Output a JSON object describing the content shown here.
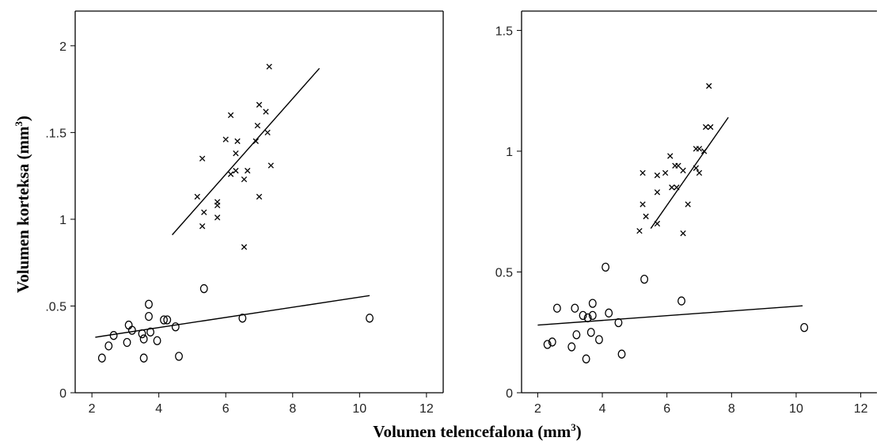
{
  "figure": {
    "ylabel": "Volumen korteksa (mm",
    "ylabel_sup": "3",
    "ylabel_end": ")",
    "xlabel": "Volumen telencefalona (mm",
    "xlabel_sup": "3",
    "xlabel_end": ")"
  },
  "chart_data": [
    {
      "type": "scatter",
      "title": "",
      "xlabel": "",
      "ylabel": "",
      "xlim": [
        1.5,
        12.5
      ],
      "ylim": [
        0,
        2.2
      ],
      "xticks": [
        2,
        4,
        6,
        8,
        10,
        12
      ],
      "yticks": [
        0,
        0.5,
        1,
        1.5,
        2
      ],
      "ytick_labels": [
        "0",
        ".0.5",
        "1",
        ".1.5",
        "2"
      ],
      "grid": false,
      "series": [
        {
          "marker": "x",
          "points": [
            [
              7.3,
              1.88
            ],
            [
              7.0,
              1.66
            ],
            [
              6.15,
              1.6
            ],
            [
              7.2,
              1.62
            ],
            [
              6.95,
              1.54
            ],
            [
              6.0,
              1.46
            ],
            [
              6.35,
              1.45
            ],
            [
              6.9,
              1.45
            ],
            [
              7.25,
              1.5
            ],
            [
              6.3,
              1.38
            ],
            [
              5.3,
              1.35
            ],
            [
              7.35,
              1.31
            ],
            [
              6.3,
              1.28
            ],
            [
              6.65,
              1.28
            ],
            [
              6.15,
              1.26
            ],
            [
              6.55,
              1.23
            ],
            [
              5.15,
              1.13
            ],
            [
              7.0,
              1.13
            ],
            [
              5.75,
              1.1
            ],
            [
              5.75,
              1.08
            ],
            [
              5.35,
              1.04
            ],
            [
              5.75,
              1.01
            ],
            [
              5.3,
              0.96
            ],
            [
              6.55,
              0.84
            ]
          ],
          "fit": {
            "x": [
              4.4,
              8.8
            ],
            "y": [
              0.91,
              1.87
            ]
          }
        },
        {
          "marker": "o",
          "points": [
            [
              3.7,
              0.51
            ],
            [
              5.35,
              0.6
            ],
            [
              3.1,
              0.39
            ],
            [
              3.7,
              0.44
            ],
            [
              4.15,
              0.42
            ],
            [
              4.25,
              0.42
            ],
            [
              3.2,
              0.36
            ],
            [
              3.75,
              0.35
            ],
            [
              3.5,
              0.34
            ],
            [
              4.5,
              0.38
            ],
            [
              2.65,
              0.33
            ],
            [
              3.55,
              0.31
            ],
            [
              3.05,
              0.29
            ],
            [
              3.95,
              0.3
            ],
            [
              2.5,
              0.27
            ],
            [
              2.3,
              0.2
            ],
            [
              3.55,
              0.2
            ],
            [
              4.6,
              0.21
            ],
            [
              6.5,
              0.43
            ],
            [
              10.3,
              0.43
            ]
          ],
          "fit": {
            "x": [
              2.1,
              10.3
            ],
            "y": [
              0.32,
              0.56
            ]
          }
        }
      ]
    },
    {
      "type": "scatter",
      "title": "",
      "xlabel": "",
      "ylabel": "",
      "xlim": [
        1.5,
        12.5
      ],
      "ylim": [
        0,
        1.58
      ],
      "xticks": [
        2,
        4,
        6,
        8,
        10,
        12
      ],
      "yticks": [
        0,
        0.5,
        1,
        1.5
      ],
      "ytick_labels": [
        "0",
        "0.5",
        "1",
        "1.5"
      ],
      "grid": false,
      "series": [
        {
          "marker": "x",
          "points": [
            [
              7.3,
              1.27
            ],
            [
              7.2,
              1.1
            ],
            [
              7.35,
              1.1
            ],
            [
              6.1,
              0.98
            ],
            [
              6.9,
              1.01
            ],
            [
              7.0,
              1.01
            ],
            [
              7.15,
              1.0
            ],
            [
              6.9,
              0.93
            ],
            [
              7.0,
              0.91
            ],
            [
              6.25,
              0.94
            ],
            [
              6.35,
              0.94
            ],
            [
              6.5,
              0.92
            ],
            [
              5.25,
              0.91
            ],
            [
              5.7,
              0.9
            ],
            [
              5.95,
              0.91
            ],
            [
              6.15,
              0.85
            ],
            [
              6.3,
              0.85
            ],
            [
              5.7,
              0.83
            ],
            [
              5.25,
              0.78
            ],
            [
              6.65,
              0.78
            ],
            [
              5.35,
              0.73
            ],
            [
              5.7,
              0.7
            ],
            [
              5.15,
              0.67
            ],
            [
              6.5,
              0.66
            ]
          ],
          "fit": {
            "x": [
              5.5,
              7.9
            ],
            "y": [
              0.68,
              1.14
            ]
          }
        },
        {
          "marker": "o",
          "points": [
            [
              4.1,
              0.52
            ],
            [
              5.3,
              0.47
            ],
            [
              6.45,
              0.38
            ],
            [
              3.7,
              0.37
            ],
            [
              2.6,
              0.35
            ],
            [
              3.15,
              0.35
            ],
            [
              3.4,
              0.32
            ],
            [
              4.2,
              0.33
            ],
            [
              3.7,
              0.32
            ],
            [
              3.55,
              0.31
            ],
            [
              4.5,
              0.29
            ],
            [
              3.65,
              0.25
            ],
            [
              3.2,
              0.24
            ],
            [
              3.9,
              0.22
            ],
            [
              2.3,
              0.2
            ],
            [
              2.45,
              0.21
            ],
            [
              3.05,
              0.19
            ],
            [
              4.6,
              0.16
            ],
            [
              3.5,
              0.14
            ],
            [
              10.25,
              0.27
            ]
          ],
          "fit": {
            "x": [
              2.0,
              10.2
            ],
            "y": [
              0.28,
              0.36
            ]
          }
        }
      ]
    }
  ]
}
